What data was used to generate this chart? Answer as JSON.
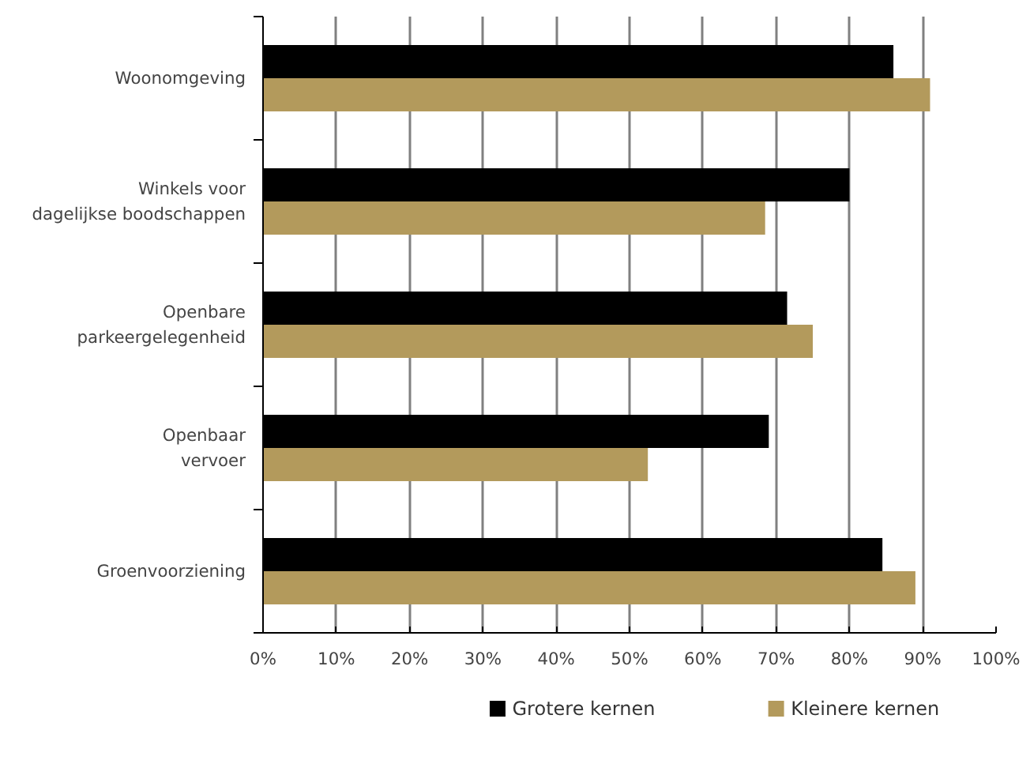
{
  "chart_data": {
    "type": "bar",
    "orientation": "horizontal",
    "categories": [
      "Woonomgeving",
      "Winkels voor\ndagelijkse boodschappen",
      "Openbare\nparkeergelegenheid",
      "Openbaar\nvervoer",
      "Groenvoorziening"
    ],
    "series": [
      {
        "name": "Grotere kernen",
        "color": "#000000",
        "values": [
          86,
          80,
          71.5,
          69,
          84.5
        ]
      },
      {
        "name": "Kleinere kernen",
        "color": "#b39a5c",
        "values": [
          91,
          68.5,
          75,
          52.5,
          89
        ]
      }
    ],
    "xlim": [
      0,
      100
    ],
    "xticks": [
      {
        "value": 0,
        "label": "0%"
      },
      {
        "value": 10,
        "label": "10%"
      },
      {
        "value": 20,
        "label": "20%"
      },
      {
        "value": 30,
        "label": "30%"
      },
      {
        "value": 40,
        "label": "40%"
      },
      {
        "value": 50,
        "label": "50%"
      },
      {
        "value": 60,
        "label": "60%"
      },
      {
        "value": 70,
        "label": "70%"
      },
      {
        "value": 80,
        "label": "80%"
      },
      {
        "value": 90,
        "label": "90%"
      },
      {
        "value": 100,
        "label": "100%"
      }
    ],
    "grid": "x",
    "legend": "bottom"
  }
}
